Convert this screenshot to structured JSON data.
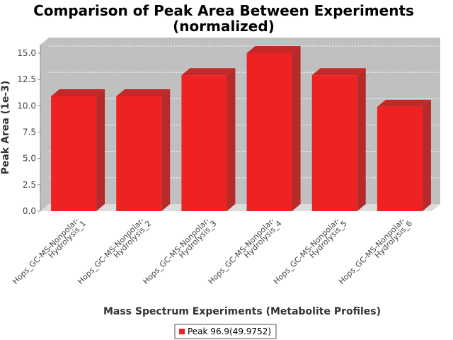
{
  "chart_data": {
    "type": "bar",
    "title_lines": [
      "Comparison of Peak Area Between Experiments",
      "(normalized)"
    ],
    "xlabel": "Mass Spectrum Experiments (Metabolite Profiles)",
    "ylabel": "Peak Area (1e-3)",
    "categories": [
      [
        "Hops_GC-MS-Nonpolar-",
        "Hydrolysis_1"
      ],
      [
        "Hops_GC-MS-Nonpolar-",
        "Hydrolysis_2"
      ],
      [
        "Hops_GC-MS-Nonpolar-",
        "Hydrolysis_3"
      ],
      [
        "Hops_GC-MS-Nonpolar-",
        "Hydrolysis_4"
      ],
      [
        "Hops_GC-MS-Nonpolar-",
        "Hydrolysis_5"
      ],
      [
        "Hops_GC-MS-Nonpolar-",
        "Hydrolysis_6"
      ]
    ],
    "series": [
      {
        "name": "Peak 96.9(49.9752)",
        "values": [
          10.9,
          10.9,
          12.9,
          15.0,
          12.9,
          9.9
        ],
        "color": "#ee2222"
      }
    ],
    "yticks": [
      "0.0",
      "2.5",
      "5.0",
      "7.5",
      "10.0",
      "12.5",
      "15.0"
    ],
    "ylim": [
      0,
      15.8
    ],
    "grid": true,
    "legend_position": "bottom",
    "colors": {
      "plot_background": "#c0c0c0",
      "bar": "#ee2222",
      "bar_side": "#b52a2a",
      "bar_top": "#c42828"
    }
  }
}
